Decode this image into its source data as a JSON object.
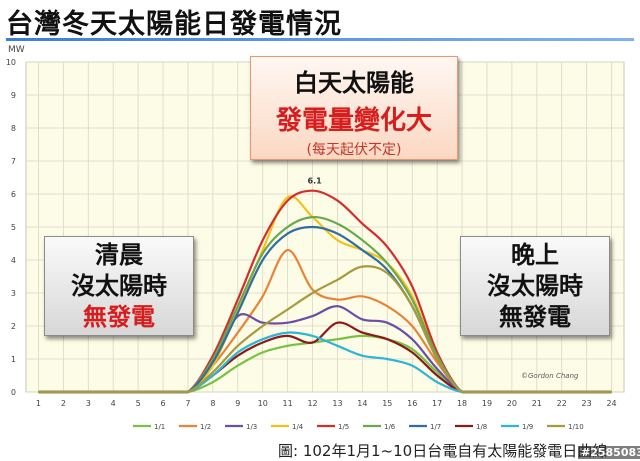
{
  "title": "台灣冬天太陽能日發電情況",
  "source": "圖: 102年1月1~10日台電自有太陽能發電日曲線",
  "watermark": "#2585083",
  "credit": "©Gordon Chang",
  "callouts": {
    "day": [
      "白天太陽能",
      "發電量變化大",
      "(每天起伏不定)"
    ],
    "morning": [
      "清晨",
      "沒太陽時",
      "無發電"
    ],
    "night": [
      "晚上",
      "沒太陽時",
      "無發電"
    ]
  },
  "colors": {
    "accent_red": "#d71d1d",
    "plot_bg": "#fdfce6",
    "title_rule": "#3a7fd5"
  },
  "chart_data": {
    "type": "line",
    "title": "",
    "xlabel": "",
    "ylabel": "MW",
    "x": [
      1,
      2,
      3,
      4,
      5,
      6,
      7,
      8,
      9,
      10,
      11,
      12,
      13,
      14,
      15,
      16,
      17,
      18,
      19,
      20,
      21,
      22,
      23,
      24
    ],
    "xlim": [
      0.5,
      24.5
    ],
    "ylim": [
      0,
      10
    ],
    "yticks": [
      0,
      1,
      2,
      3,
      4,
      5,
      6,
      7,
      8,
      9,
      10
    ],
    "grid": true,
    "legend_position": "bottom",
    "annotations": [
      {
        "text": "6.1",
        "x": 12,
        "y": 6.1
      }
    ],
    "series": [
      {
        "name": "1/1",
        "color": "#7ac143",
        "values": [
          0,
          0,
          0,
          0,
          0,
          0,
          0,
          0.3,
          0.8,
          1.2,
          1.4,
          1.5,
          1.6,
          1.7,
          1.6,
          1.3,
          0.6,
          0,
          0,
          0,
          0,
          0,
          0,
          0
        ]
      },
      {
        "name": "1/2",
        "color": "#e8833a",
        "values": [
          0,
          0,
          0,
          0,
          0,
          0,
          0,
          0.8,
          1.8,
          2.9,
          4.3,
          3.1,
          2.8,
          2.9,
          2.6,
          2.0,
          0.9,
          0,
          0,
          0,
          0,
          0,
          0,
          0
        ]
      },
      {
        "name": "1/3",
        "color": "#6b4ea6",
        "values": [
          0,
          0,
          0,
          0,
          0,
          0,
          0,
          0.9,
          2.3,
          2.1,
          2.1,
          2.3,
          2.6,
          2.2,
          2.1,
          1.6,
          0.7,
          0,
          0,
          0,
          0,
          0,
          0,
          0
        ]
      },
      {
        "name": "1/4",
        "color": "#f2c21b",
        "values": [
          0,
          0,
          0,
          0,
          0,
          0,
          0,
          0.8,
          2.5,
          4.3,
          5.9,
          5.3,
          4.6,
          4.3,
          3.9,
          2.9,
          1.1,
          0,
          0,
          0,
          0,
          0,
          0,
          0
        ]
      },
      {
        "name": "1/5",
        "color": "#d42d2d",
        "values": [
          0,
          0,
          0,
          0,
          0,
          0,
          0,
          1.1,
          2.8,
          4.6,
          5.8,
          6.1,
          5.8,
          5.1,
          4.4,
          3.2,
          1.2,
          0,
          0,
          0,
          0,
          0,
          0,
          0
        ]
      },
      {
        "name": "1/6",
        "color": "#6aa84f",
        "values": [
          0,
          0,
          0,
          0,
          0,
          0,
          0,
          1.0,
          2.6,
          4.2,
          5.0,
          5.3,
          5.1,
          4.6,
          3.9,
          2.8,
          1.1,
          0,
          0,
          0,
          0,
          0,
          0,
          0
        ]
      },
      {
        "name": "1/7",
        "color": "#2f6ea5",
        "values": [
          0,
          0,
          0,
          0,
          0,
          0,
          0,
          0.9,
          2.4,
          4.0,
          4.8,
          5.0,
          4.8,
          4.3,
          3.7,
          2.6,
          1.0,
          0,
          0,
          0,
          0,
          0,
          0,
          0
        ]
      },
      {
        "name": "1/8",
        "color": "#8b1a1a",
        "values": [
          0,
          0,
          0,
          0,
          0,
          0,
          0,
          0.5,
          1.1,
          1.5,
          1.7,
          1.5,
          2.1,
          1.8,
          1.6,
          1.2,
          0.5,
          0,
          0,
          0,
          0,
          0,
          0,
          0
        ]
      },
      {
        "name": "1/9",
        "color": "#2bb5d6",
        "values": [
          0,
          0,
          0,
          0,
          0,
          0,
          0,
          0.5,
          1.2,
          1.6,
          1.8,
          1.7,
          1.4,
          1.1,
          1.0,
          0.8,
          0.3,
          0,
          0,
          0,
          0,
          0,
          0,
          0
        ]
      },
      {
        "name": "1/10",
        "color": "#a89a3c",
        "values": [
          0,
          0,
          0,
          0,
          0,
          0,
          0,
          0.6,
          1.4,
          2.0,
          2.5,
          3.0,
          3.4,
          3.8,
          3.6,
          2.6,
          1.0,
          0,
          0,
          0,
          0,
          0,
          0,
          0
        ]
      }
    ]
  }
}
